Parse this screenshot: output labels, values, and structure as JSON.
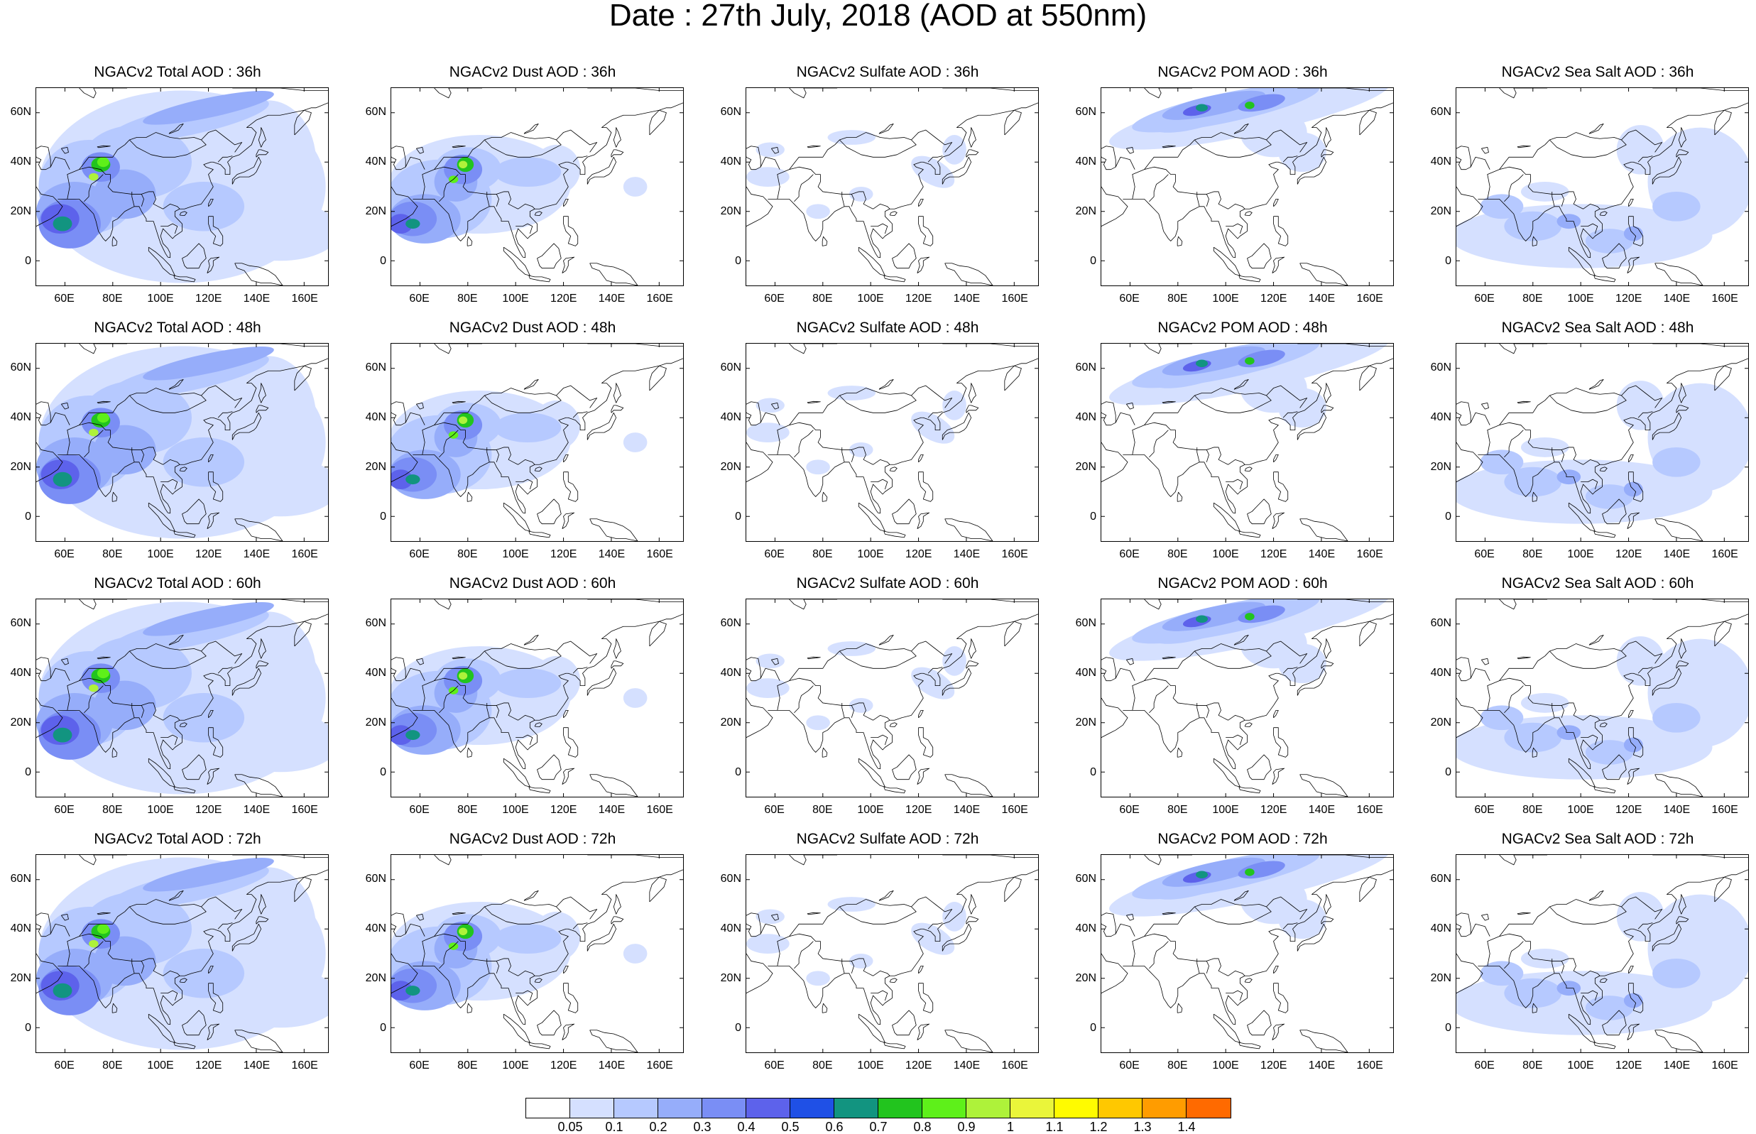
{
  "title": "Date : 27th July, 2018 (AOD at 550nm)",
  "lat_ticks": [
    "60N",
    "40N",
    "20N",
    "0"
  ],
  "lon_ticks": [
    "60E",
    "80E",
    "100E",
    "120E",
    "140E",
    "160E"
  ],
  "colors": {
    "scale": [
      "#ffffff",
      "#d5e0ff",
      "#b6c9ff",
      "#96adfa",
      "#7a8ef5",
      "#5d62eb",
      "#1f50e6",
      "#129480",
      "#22c41e",
      "#5ef01a",
      "#aef23a",
      "#eaf53a",
      "#fffb00",
      "#ffc800",
      "#ff9c00",
      "#ff6a00",
      "#ff1a00"
    ],
    "coastline": "#000000"
  },
  "colorbar": {
    "labels": [
      "0.05",
      "0.1",
      "0.2",
      "0.3",
      "0.4",
      "0.5",
      "0.6",
      "0.7",
      "0.8",
      "0.9",
      "1",
      "1.1",
      "1.2",
      "1.3",
      "1.4"
    ]
  },
  "panels": [
    {
      "title": "NGACv2 Total AOD : 36h",
      "species": "total"
    },
    {
      "title": "NGACv2 Dust AOD : 36h",
      "species": "dust"
    },
    {
      "title": "NGACv2 Sulfate AOD : 36h",
      "species": "sulfate"
    },
    {
      "title": "NGACv2 POM AOD : 36h",
      "species": "pom"
    },
    {
      "title": "NGACv2 Sea Salt AOD : 36h",
      "species": "seasalt"
    },
    {
      "title": "NGACv2 Total AOD : 48h",
      "species": "total"
    },
    {
      "title": "NGACv2 Dust AOD : 48h",
      "species": "dust"
    },
    {
      "title": "NGACv2 Sulfate AOD : 48h",
      "species": "sulfate"
    },
    {
      "title": "NGACv2 POM AOD : 48h",
      "species": "pom"
    },
    {
      "title": "NGACv2 Sea Salt AOD : 48h",
      "species": "seasalt"
    },
    {
      "title": "NGACv2 Total AOD : 60h",
      "species": "total"
    },
    {
      "title": "NGACv2 Dust AOD : 60h",
      "species": "dust"
    },
    {
      "title": "NGACv2 Sulfate AOD : 60h",
      "species": "sulfate"
    },
    {
      "title": "NGACv2 POM AOD : 60h",
      "species": "pom"
    },
    {
      "title": "NGACv2 Sea Salt AOD : 60h",
      "species": "seasalt"
    },
    {
      "title": "NGACv2 Total AOD : 72h",
      "species": "total"
    },
    {
      "title": "NGACv2 Dust AOD : 72h",
      "species": "dust"
    },
    {
      "title": "NGACv2 Sulfate AOD : 72h",
      "species": "sulfate"
    },
    {
      "title": "NGACv2 POM AOD : 72h",
      "species": "pom"
    },
    {
      "title": "NGACv2 Sea Salt  AOD : 72h",
      "species": "seasalt"
    }
  ]
}
